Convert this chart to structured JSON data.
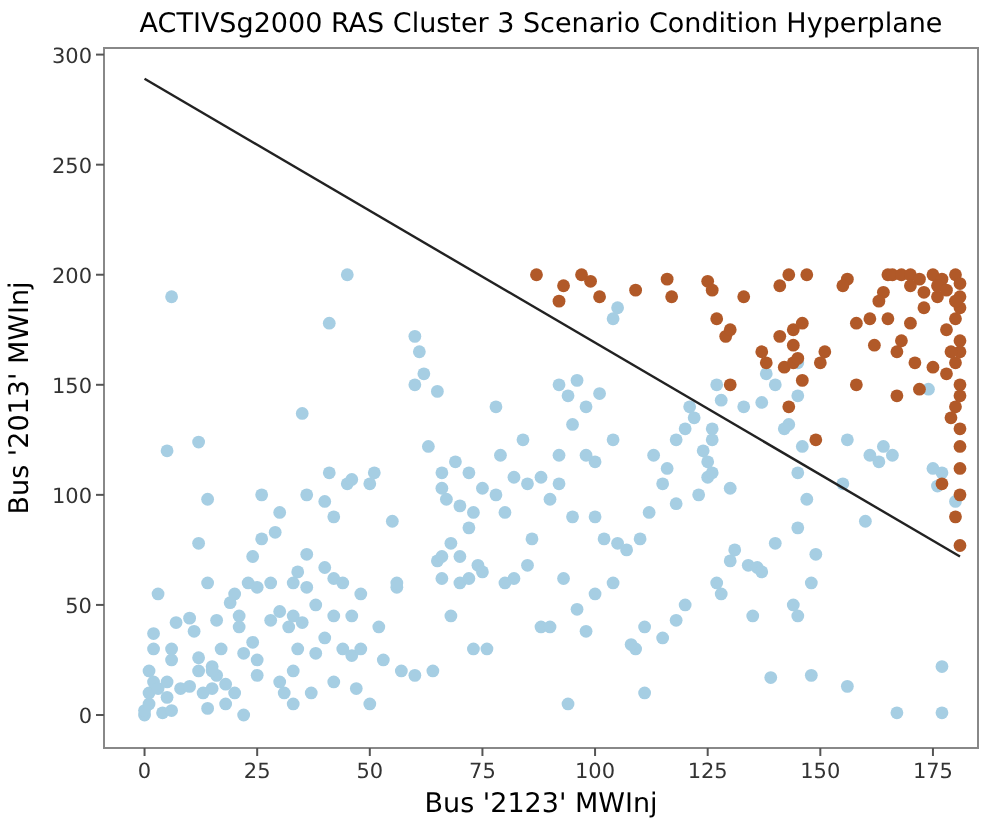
{
  "chart_data": {
    "type": "scatter",
    "title": "ACTIVSg2000 RAS Cluster 3 Scenario Condition Hyperplane",
    "xlabel": "Bus '2123' MWInj",
    "ylabel": "Bus '2013' MWInj",
    "xlim": [
      -9,
      185
    ],
    "ylim": [
      -15,
      303
    ],
    "xticks": [
      0,
      25,
      50,
      75,
      100,
      125,
      150,
      175
    ],
    "yticks": [
      0,
      50,
      100,
      150,
      200,
      250,
      300
    ],
    "grid": false,
    "series": [
      {
        "color": "#a6cee3",
        "marker": "circle",
        "x": [
          0,
          0,
          1,
          1,
          2,
          1,
          2,
          3,
          4,
          5,
          5,
          6,
          6,
          6,
          8,
          10,
          12,
          12,
          13,
          14,
          15,
          15,
          16,
          17,
          18,
          18,
          20,
          22,
          22,
          24,
          25,
          25,
          23,
          25,
          3,
          2,
          7,
          10,
          11,
          12,
          12,
          14,
          15,
          16,
          19,
          21,
          21,
          24,
          28,
          26,
          30,
          32,
          33,
          35,
          34,
          33,
          30,
          31,
          33,
          37,
          38,
          38,
          40,
          40,
          42,
          42,
          42,
          44,
          44,
          46,
          46,
          48,
          47,
          48,
          50,
          50,
          51,
          52,
          53,
          55,
          56,
          57,
          60,
          56,
          36,
          40,
          41,
          42,
          45,
          46,
          35,
          41,
          45,
          6,
          5,
          14,
          20,
          28,
          30,
          34,
          36,
          26,
          29,
          33,
          36,
          60,
          61,
          62,
          60,
          65,
          63,
          66,
          66,
          67,
          69,
          70,
          72,
          73,
          72,
          75,
          78,
          79,
          80,
          82,
          85,
          84,
          86,
          78,
          68,
          70,
          74,
          75,
          80,
          82,
          88,
          85,
          66,
          68,
          73,
          76,
          70,
          65,
          66,
          72,
          64,
          92,
          94,
          95,
          96,
          98,
          101,
          104,
          105,
          104,
          100,
          98,
          92,
          88,
          90,
          92,
          95,
          100,
          102,
          105,
          107,
          110,
          112,
          113,
          115,
          116,
          118,
          118,
          120,
          121,
          122,
          123,
          124,
          125,
          125,
          126,
          126,
          127,
          128,
          126,
          130,
          130,
          131,
          134,
          136,
          137,
          135,
          128,
          127,
          120,
          118,
          115,
          111,
          111,
          109,
          108,
          104,
          100,
          93,
          94,
          98,
          96,
          90,
          133,
          138,
          140,
          143,
          145,
          145,
          142,
          145,
          146,
          147,
          145,
          144,
          145,
          148,
          149,
          155,
          156,
          161,
          163,
          164,
          166,
          175,
          177,
          180,
          176,
          156,
          148,
          139,
          167,
          177,
          177,
          174,
          160,
          137,
          140
        ],
        "values": [
          0,
          2,
          5,
          10,
          15,
          20,
          30,
          12,
          1,
          8,
          15,
          2,
          25,
          30,
          12,
          13,
          20,
          26,
          10,
          3,
          12,
          22,
          18,
          30,
          14,
          5,
          10,
          28,
          0,
          33,
          25,
          18,
          60,
          58,
          55,
          37,
          42,
          44,
          38,
          78,
          124,
          60,
          20,
          43,
          51,
          45,
          40,
          72,
          60,
          100,
          92,
          40,
          45,
          42,
          30,
          20,
          15,
          10,
          5,
          10,
          28,
          50,
          35,
          67,
          15,
          45,
          62,
          60,
          30,
          45,
          27,
          30,
          12,
          55,
          5,
          105,
          110,
          40,
          25,
          88,
          58,
          20,
          18,
          60,
          100,
          97,
          110,
          90,
          105,
          107,
          137,
          178,
          200,
          190,
          120,
          98,
          55,
          43,
          47,
          65,
          73,
          80,
          83,
          60,
          58,
          172,
          165,
          155,
          150,
          147,
          122,
          110,
          103,
          98,
          115,
          95,
          110,
          92,
          85,
          103,
          100,
          118,
          92,
          108,
          105,
          125,
          80,
          140,
          78,
          72,
          68,
          65,
          60,
          62,
          40,
          68,
          62,
          45,
          30,
          30,
          60,
          70,
          72,
          62,
          20,
          150,
          145,
          132,
          152,
          140,
          146,
          180,
          185,
          125,
          115,
          118,
          118,
          108,
          98,
          105,
          90,
          90,
          80,
          78,
          75,
          80,
          92,
          118,
          105,
          112,
          96,
          125,
          130,
          140,
          135,
          100,
          120,
          115,
          108,
          125,
          110,
          150,
          143,
          130,
          103,
          70,
          75,
          68,
          67,
          65,
          45,
          55,
          60,
          50,
          43,
          35,
          40,
          10,
          30,
          32,
          60,
          55,
          62,
          5,
          38,
          48,
          40,
          140,
          155,
          150,
          132,
          145,
          160,
          130,
          110,
          122,
          98,
          85,
          50,
          45,
          60,
          73,
          105,
          125,
          118,
          115,
          122,
          118,
          112,
          110,
          97,
          104,
          13,
          18,
          17,
          1,
          1,
          22,
          148,
          88,
          142,
          78
        ]
      },
      {
        "color": "#b15928",
        "marker": "circle",
        "x": [
          87,
          92,
          93,
          97,
          99,
          101,
          109,
          116,
          117,
          125,
          127,
          126,
          129,
          130,
          130,
          133,
          137,
          138,
          141,
          141,
          142,
          143,
          144,
          143,
          144,
          144,
          145,
          146,
          147,
          146,
          150,
          151,
          156,
          155,
          158,
          158,
          149,
          161,
          162,
          164,
          165,
          166,
          168,
          170,
          172,
          175,
          177,
          180,
          181,
          181,
          181,
          180,
          178,
          181,
          181,
          180,
          181,
          181,
          180,
          179,
          181,
          181,
          181,
          180,
          181,
          181,
          177,
          176,
          173,
          170,
          168,
          167,
          172,
          175,
          178,
          179,
          170,
          173,
          176,
          178,
          180,
          163,
          165,
          167,
          171
        ],
        "values": [
          200,
          188,
          195,
          200,
          197,
          190,
          193,
          198,
          190,
          197,
          180,
          193,
          172,
          150,
          175,
          190,
          165,
          160,
          195,
          172,
          158,
          140,
          160,
          200,
          175,
          168,
          162,
          178,
          200,
          152,
          160,
          165,
          198,
          195,
          178,
          150,
          125,
          180,
          168,
          192,
          200,
          200,
          200,
          200,
          198,
          200,
          198,
          200,
          196,
          190,
          185,
          180,
          175,
          170,
          165,
          160,
          150,
          145,
          140,
          135,
          130,
          122,
          112,
          90,
          77,
          100,
          105,
          190,
          185,
          178,
          170,
          145,
          148,
          158,
          155,
          165,
          195,
          192,
          195,
          193,
          188,
          188,
          180,
          165,
          160
        ]
      },
      {
        "type": "line",
        "color": "#222222",
        "x": [
          0,
          181
        ],
        "values": [
          289,
          72
        ]
      }
    ]
  }
}
